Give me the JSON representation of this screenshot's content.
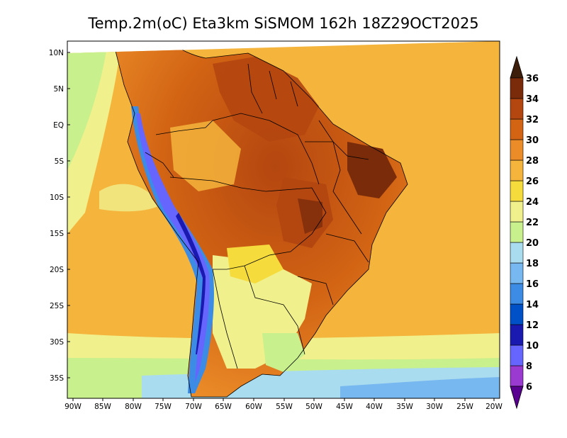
{
  "title": "Temp.2m(oC) Eta3km SiSMOM 162h 18Z29OCT2025",
  "latitude_labels": [
    "10N",
    "5N",
    "EQ",
    "5S",
    "10S",
    "15S",
    "20S",
    "25S",
    "30S",
    "35S"
  ],
  "longitude_labels": [
    "90W",
    "85W",
    "80W",
    "75W",
    "70W",
    "65W",
    "60W",
    "55W",
    "50W",
    "45W",
    "40W",
    "35W",
    "30W",
    "25W",
    "20W"
  ],
  "colorbar": {
    "labels": [
      "6",
      "8",
      "10",
      "12",
      "14",
      "16",
      "18",
      "20",
      "22",
      "24",
      "26",
      "28",
      "30",
      "32",
      "34",
      "36"
    ],
    "colors": [
      "#6a0fa8",
      "#9a3ad0",
      "#6666ff",
      "#1a1ab0",
      "#0050c8",
      "#3c8ce6",
      "#78b8f0",
      "#aadcf0",
      "#c8f08c",
      "#f0f08c",
      "#f5dc3c",
      "#f5b43c",
      "#eb8c28",
      "#d26414",
      "#b44610",
      "#7a2c0a",
      "#501e05"
    ],
    "min_color": "#5a0090",
    "max_color": "#3c1e0a"
  },
  "colors": {
    "ocean_warm": "#f5b43c",
    "ocean_mid": "#f0f08c",
    "ocean_cool": "#c8f08c",
    "ocean_cold": "#aadcf0",
    "land_hot": "#b44610",
    "land_very_hot": "#7a2c0a",
    "land_warm": "#d26414",
    "andes": "#3c8ce6",
    "andes_peak": "#6666ff"
  }
}
